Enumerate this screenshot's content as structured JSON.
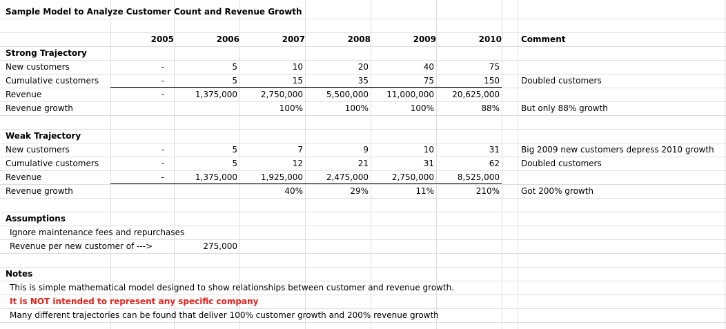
{
  "title": "Sample Model to Analyze Customer Count and Revenue Growth",
  "years": [
    "2005",
    "2006",
    "2007",
    "2008",
    "2009",
    "2010"
  ],
  "comment_header": "Comment",
  "strong": {
    "heading": "Strong Trajectory",
    "rows": [
      {
        "label": "New customers",
        "values": [
          "-",
          "5",
          "10",
          "20",
          "40",
          "75"
        ],
        "comment": ""
      },
      {
        "label": "Cumulative customers",
        "values": [
          "-",
          "5",
          "15",
          "35",
          "75",
          "150"
        ],
        "comment": "Doubled customers"
      },
      {
        "label": "Revenue",
        "values": [
          "-",
          "1,375,000",
          "2,750,000",
          "5,500,000",
          "11,000,000",
          "20,625,000"
        ],
        "comment": ""
      },
      {
        "label": "Revenue growth",
        "values": [
          "",
          "",
          "100%",
          "100%",
          "100%",
          "88%"
        ],
        "comment": "But only 88% growth"
      }
    ]
  },
  "weak": {
    "heading": "Weak Trajectory",
    "rows": [
      {
        "label": "New customers",
        "values": [
          "-",
          "5",
          "7",
          "9",
          "10",
          "31"
        ],
        "comment": "Big 2009 new customers depress 2010 growth"
      },
      {
        "label": "Cumulative customers",
        "values": [
          "-",
          "5",
          "12",
          "21",
          "31",
          "62"
        ],
        "comment": "Doubled customers"
      },
      {
        "label": "Revenue",
        "values": [
          "-",
          "1,375,000",
          "1,925,000",
          "2,475,000",
          "2,750,000",
          "8,525,000"
        ],
        "comment": ""
      },
      {
        "label": "Revenue growth",
        "values": [
          "",
          "",
          "40%",
          "29%",
          "11%",
          "210%"
        ],
        "comment": "Got 200% growth"
      }
    ]
  },
  "assumptions": {
    "heading": "Assumptions",
    "lines": [
      "Ignore maintenance fees and repurchases",
      "Revenue per new customer of --->"
    ],
    "revenue_per_customer": "275,000"
  },
  "notes": {
    "heading": "Notes",
    "line1": "This is simple mathematical model designed to show relationships between customer and revenue growth.",
    "line2_warning": "It is NOT intended to represent any specific company",
    "line3": "Many different trajectories can be found that deliver 100% customer growth and 200% revenue growth"
  },
  "colors": {
    "gridline": "#dcdfe3",
    "warning_text": "#e8201a"
  }
}
